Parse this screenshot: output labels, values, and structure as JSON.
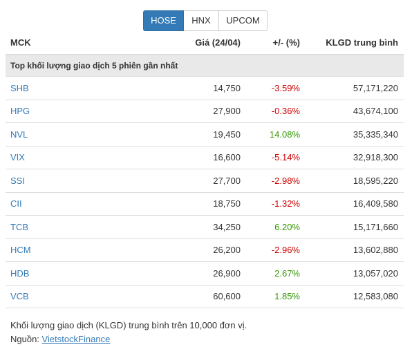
{
  "tabs": [
    {
      "label": "HOSE",
      "active": true
    },
    {
      "label": "HNX",
      "active": false
    },
    {
      "label": "UPCOM",
      "active": false
    }
  ],
  "table": {
    "headers": {
      "mck": "MCK",
      "price": "Giá (24/04)",
      "pct": "+/- (%)",
      "vol": "KLGD trung bình"
    },
    "section_title": "Top khối lượng giao dịch 5 phiên gần nhất",
    "rows": [
      {
        "mck": "SHB",
        "price": "14,750",
        "pct": "-3.59%",
        "vol": "57,171,220"
      },
      {
        "mck": "HPG",
        "price": "27,900",
        "pct": "-0.36%",
        "vol": "43,674,100"
      },
      {
        "mck": "NVL",
        "price": "19,450",
        "pct": "14.08%",
        "vol": "35,335,340"
      },
      {
        "mck": "VIX",
        "price": "16,600",
        "pct": "-5.14%",
        "vol": "32,918,300"
      },
      {
        "mck": "SSI",
        "price": "27,700",
        "pct": "-2.98%",
        "vol": "18,595,220"
      },
      {
        "mck": "CII",
        "price": "18,750",
        "pct": "-1.32%",
        "vol": "16,409,580"
      },
      {
        "mck": "TCB",
        "price": "34,250",
        "pct": "6.20%",
        "vol": "15,171,660"
      },
      {
        "mck": "HCM",
        "price": "26,200",
        "pct": "-2.96%",
        "vol": "13,602,880"
      },
      {
        "mck": "HDB",
        "price": "26,900",
        "pct": "2.67%",
        "vol": "13,057,020"
      },
      {
        "mck": "VCB",
        "price": "60,600",
        "pct": "1.85%",
        "vol": "12,583,080"
      }
    ]
  },
  "notes": {
    "unit_note": "Khối lượng giao dịch (KLGD) trung bình trên 10,000 đơn vị.",
    "source_label": "Nguồn:",
    "source_link": "VietstockFinance"
  },
  "colors": {
    "active_tab": "#337ab7",
    "link": "#337ab7",
    "negative": "#cc0000",
    "positive": "#339900"
  }
}
